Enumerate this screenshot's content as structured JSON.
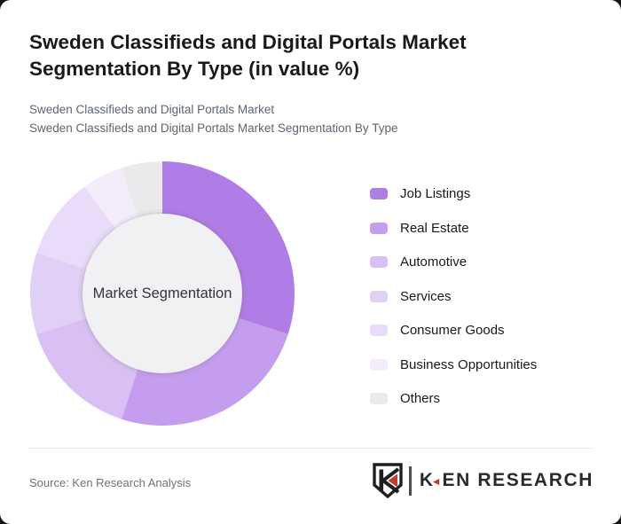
{
  "header": {
    "title": "Sweden Classifieds and Digital Portals Market Segmentation By Type (in value %)",
    "subtitle1": "Sweden Classifieds and Digital Portals Market",
    "subtitle2": "Sweden Classifieds and Digital Portals Market Segmentation By Type"
  },
  "chart_data": {
    "type": "pie",
    "variant": "donut",
    "title": "Sweden Classifieds and Digital Portals Market Segmentation By Type (in value %)",
    "center_label": "Market Segmentation",
    "unit": "%",
    "start_angle_deg": 0,
    "direction": "clockwise",
    "legend_position": "right",
    "hole_color": "#f1f0f2",
    "segments": [
      {
        "label": "Job Listings",
        "value": 30,
        "color": "#b07de6"
      },
      {
        "label": "Real Estate",
        "value": 25,
        "color": "#c49dee"
      },
      {
        "label": "Automotive",
        "value": 15,
        "color": "#d9bff3"
      },
      {
        "label": "Services",
        "value": 10,
        "color": "#e1cff6"
      },
      {
        "label": "Consumer Goods",
        "value": 10,
        "color": "#e9dcf8"
      },
      {
        "label": "Business Opportunities",
        "value": 5,
        "color": "#f2ecfb"
      },
      {
        "label": "Others",
        "value": 5,
        "color": "#eaeaec"
      }
    ]
  },
  "footer": {
    "source": "Source: Ken Research Analysis",
    "logo": {
      "k": "K",
      "rest": "EN RESEARCH",
      "triangle_icon": "◄",
      "red": "#c43a2e",
      "dark": "#2a2a2a"
    }
  }
}
